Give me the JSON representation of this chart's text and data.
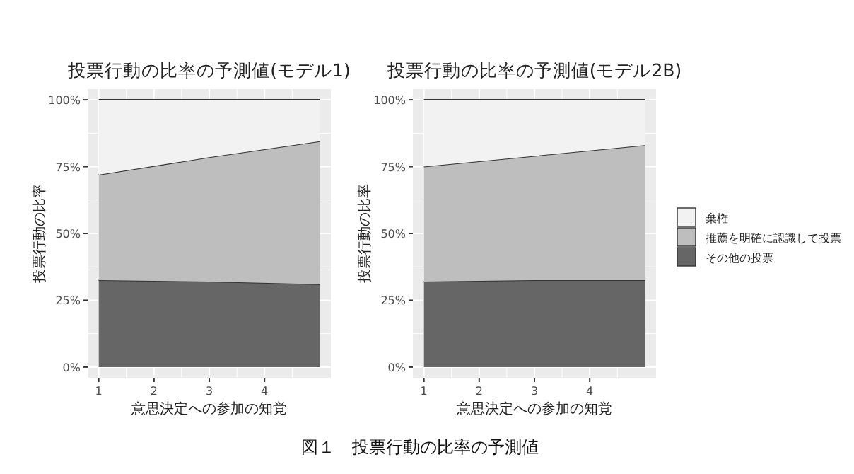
{
  "chart_data": [
    {
      "type": "area",
      "stacked": true,
      "title": "投票行動の比率の予測値(モデル1)",
      "xlabel": "意思決定への参加の知覚",
      "ylabel": "投票行動の比率",
      "x": [
        1,
        3,
        5
      ],
      "series": [
        {
          "color": "#666666",
          "values": [
            32.5,
            32,
            31
          ]
        },
        {
          "color": "#bebebe",
          "values": [
            39.5,
            46.5,
            53.5
          ]
        },
        {
          "color": "#f2f2f2",
          "values": [
            28,
            21.5,
            15.5
          ]
        }
      ],
      "xlim": [
        0.8,
        5.2
      ],
      "xticks": [
        1,
        2,
        3,
        4
      ],
      "ylim": [
        -4,
        104
      ],
      "yticks": [
        {
          "value": 0,
          "label": "0%"
        },
        {
          "value": 25,
          "label": "25%"
        },
        {
          "value": 50,
          "label": "50%"
        },
        {
          "value": 75,
          "label": "75%"
        },
        {
          "value": 100,
          "label": "100%"
        }
      ],
      "grid": true,
      "legend": false
    },
    {
      "type": "area",
      "stacked": true,
      "title": "投票行動の比率の予測値(モデル2B)",
      "xlabel": "意思決定への参加の知覚",
      "ylabel": "投票行動の比率",
      "x": [
        1,
        3,
        5
      ],
      "series": [
        {
          "name": "その他の投票",
          "color": "#666666",
          "values": [
            32,
            32.5,
            32.5
          ]
        },
        {
          "name": "推薦を明確に認識して投票",
          "color": "#bebebe",
          "values": [
            43,
            46.5,
            50.5
          ]
        },
        {
          "name": "棄権",
          "color": "#f2f2f2",
          "values": [
            25,
            21,
            17
          ]
        }
      ],
      "xlim": [
        0.8,
        5.2
      ],
      "xticks": [
        1,
        2,
        3,
        4
      ],
      "ylim": [
        -4,
        104
      ],
      "yticks": [
        {
          "value": 0,
          "label": "0%"
        },
        {
          "value": 25,
          "label": "25%"
        },
        {
          "value": 50,
          "label": "50%"
        },
        {
          "value": 75,
          "label": "75%"
        },
        {
          "value": 100,
          "label": "100%"
        }
      ],
      "grid": true,
      "legend": "right",
      "annotations": [
        "図１　投票行動の比率の予測値"
      ]
    }
  ]
}
